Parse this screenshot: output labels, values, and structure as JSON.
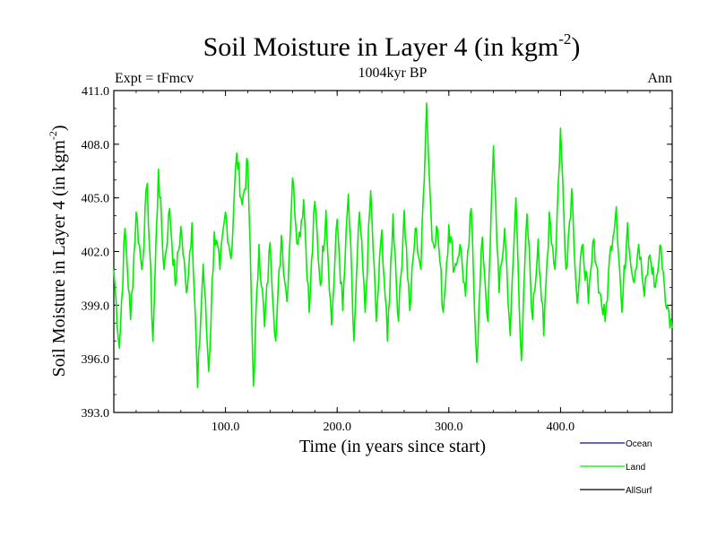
{
  "chart_data": {
    "type": "line",
    "title": "Soil Moisture in Layer 4 (in kgm",
    "title_sup": "-2",
    "title_close": ")",
    "subtitle": "1004kyr BP",
    "left_label": "Expt = tFmcv",
    "right_label": "Ann",
    "xlabel": "Time (in years since start)",
    "ylabel": "Soil Moisture in Layer 4 (in kgm",
    "ylabel_sup": "-2",
    "ylabel_close": ")",
    "xlim": [
      0,
      500
    ],
    "ylim": [
      393.0,
      411.0
    ],
    "xticks": [
      100,
      200,
      300,
      400
    ],
    "xtick_labels": [
      "100.0",
      "200.0",
      "300.0",
      "400.0"
    ],
    "yticks": [
      393,
      396,
      399,
      402,
      405,
      408,
      411
    ],
    "ytick_labels": [
      "393.0",
      "396.0",
      "399.0",
      "402.0",
      "405.0",
      "408.0",
      "411.0"
    ],
    "legend": [
      {
        "name": "Ocean",
        "color": "#0000ff"
      },
      {
        "name": "Land",
        "color": "#00ee00"
      },
      {
        "name": "AllSurf",
        "color": "#000000"
      }
    ],
    "series": [
      {
        "name": "Land",
        "color": "#00ee00",
        "x": [
          0,
          5,
          10,
          15,
          20,
          25,
          30,
          35,
          40,
          45,
          50,
          55,
          60,
          65,
          70,
          75,
          80,
          85,
          90,
          95,
          100,
          105,
          110,
          115,
          120,
          125,
          130,
          135,
          140,
          145,
          150,
          155,
          160,
          165,
          170,
          175,
          180,
          185,
          190,
          195,
          200,
          205,
          210,
          215,
          220,
          225,
          230,
          235,
          240,
          245,
          250,
          255,
          260,
          265,
          270,
          275,
          280,
          285,
          290,
          295,
          300,
          305,
          310,
          315,
          320,
          325,
          330,
          335,
          340,
          345,
          350,
          355,
          360,
          365,
          370,
          375,
          380,
          385,
          390,
          395,
          400,
          405,
          410,
          415,
          420,
          425,
          430,
          435,
          440,
          445,
          450,
          455,
          460,
          465,
          470,
          475,
          480,
          485,
          490,
          495,
          500
        ],
        "values": [
          401.0,
          396.6,
          403.3,
          398.2,
          404.2,
          401.0,
          405.8,
          397.0,
          406.6,
          401.0,
          404.4,
          400.1,
          403.4,
          399.7,
          403.6,
          394.4,
          401.3,
          395.3,
          403.1,
          401.0,
          404.2,
          401.6,
          407.5,
          404.6,
          407.0,
          394.5,
          402.4,
          397.8,
          402.5,
          397.0,
          402.9,
          399.2,
          406.1,
          402.4,
          404.9,
          398.6,
          404.8,
          400.1,
          404.3,
          397.9,
          403.8,
          398.7,
          405.2,
          397.0,
          404.2,
          398.6,
          405.4,
          398.1,
          403.2,
          397.0,
          404.1,
          398.1,
          404.3,
          398.7,
          403.3,
          401.0,
          410.3,
          402.6,
          403.2,
          398.6,
          403.5,
          401.0,
          402.4,
          399.5,
          404.4,
          395.8,
          402.8,
          398.1,
          407.9,
          399.7,
          403.3,
          397.3,
          405.0,
          395.9,
          404.1,
          398.2,
          402.7,
          397.3,
          404.2,
          401.0,
          408.9,
          401.0,
          405.5,
          399.1,
          402.4,
          399.1,
          402.7,
          399.7,
          398.1,
          402.3,
          404.5,
          398.6,
          403.6,
          400.4,
          402.4,
          399.5,
          401.8,
          400.0,
          402.3,
          398.8,
          397.7
        ]
      }
    ]
  }
}
